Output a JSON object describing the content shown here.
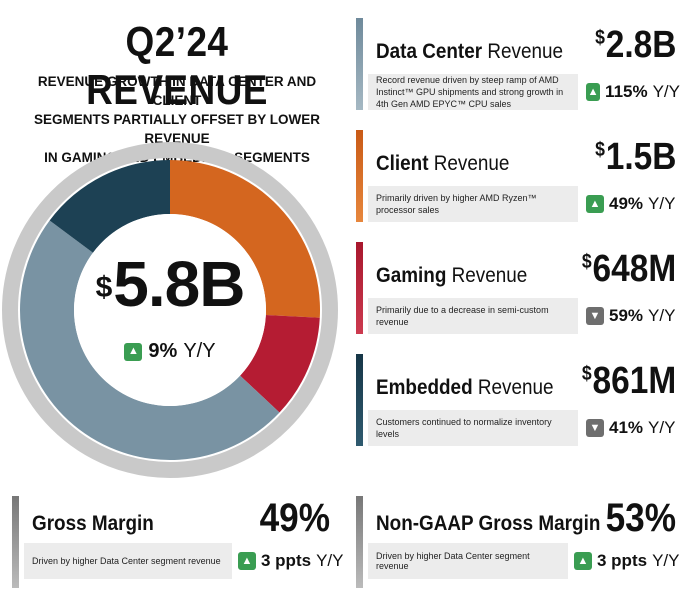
{
  "title": "Q2’24 REVENUE",
  "subtitle": [
    "REVENUE GROWTH IN DATA CENTER AND CLIENT",
    "SEGMENTS PARTIALLY OFFSET BY LOWER REVENUE",
    "IN GAMING AND EMBEDDED SEGMENTS"
  ],
  "total": {
    "currency": "$",
    "amount": "5.8B",
    "change": "9%",
    "yoy": "Y/Y",
    "direction": "up"
  },
  "segments": [
    {
      "name": "Data Center",
      "suffix": "Revenue",
      "currency": "$",
      "amount": "2.8B",
      "description": "Record revenue driven by steep ramp of AMD Instinct™ GPU shipments and strong growth in 4th Gen AMD EPYC™ CPU sales",
      "change": "115%",
      "yoy": "Y/Y",
      "direction": "up",
      "color": "#7993a3"
    },
    {
      "name": "Client",
      "suffix": "Revenue",
      "currency": "$",
      "amount": "1.5B",
      "description": "Primarily driven by higher AMD Ryzen™ processor sales",
      "change": "49%",
      "yoy": "Y/Y",
      "direction": "up",
      "color": "#d4661f"
    },
    {
      "name": "Gaming",
      "suffix": "Revenue",
      "currency": "$",
      "amount": "648M",
      "description": "Primarily due to a decrease in semi-custom revenue",
      "change": "59%",
      "yoy": "Y/Y",
      "direction": "down",
      "color": "#b51c33"
    },
    {
      "name": "Embedded",
      "suffix": "Revenue",
      "currency": "$",
      "amount": "861M",
      "description": "Customers continued to normalize inventory levels",
      "change": "41%",
      "yoy": "Y/Y",
      "direction": "down",
      "color": "#1d4154"
    }
  ],
  "margins": [
    {
      "name": "Gross Margin",
      "value": "49%",
      "description": "Driven by higher Data Center segment revenue",
      "change": "3 ppts",
      "yoy": "Y/Y",
      "direction": "up"
    },
    {
      "name": "Non-GAAP Gross Margin",
      "value": "53%",
      "description": "Driven by higher Data Center segment revenue",
      "change": "3 ppts",
      "yoy": "Y/Y",
      "direction": "up"
    }
  ],
  "chart_data": {
    "type": "pie",
    "categories": [
      "Data Center",
      "Client",
      "Gaming",
      "Embedded"
    ],
    "values": [
      2.8,
      1.5,
      0.648,
      0.861
    ],
    "colors": [
      "#7993a3",
      "#d4661f",
      "#b51c33",
      "#1d4154"
    ],
    "center_label": "$5.8B"
  }
}
